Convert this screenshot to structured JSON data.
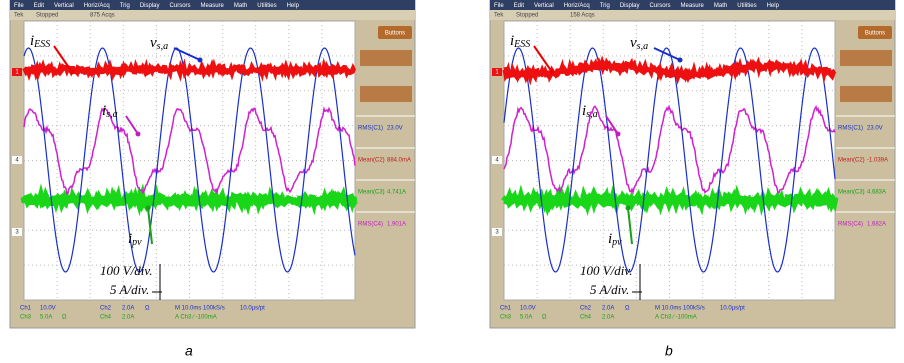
{
  "panels": [
    {
      "label": "a",
      "menu": [
        "File",
        "Edit",
        "Vertical",
        "Horiz/Acq",
        "Trig",
        "Display",
        "Cursors",
        "Measure",
        "Math",
        "Utilities",
        "Help"
      ],
      "status": [
        "Tek",
        "Stopped",
        "875 Acqs"
      ],
      "button": "Buttons",
      "channel_markers": [
        "1",
        "4",
        "3"
      ],
      "measurements": [
        {
          "name": "RMS(C1)",
          "value": "23.0V"
        },
        {
          "name": "Mean(C2)",
          "value": "884.0mA"
        },
        {
          "name": "Mean(C3)",
          "value": "4.741A"
        },
        {
          "name": "RMS(C4)",
          "value": "1.901A"
        }
      ],
      "annotations": [
        {
          "base": "i",
          "sub": "ESS"
        },
        {
          "base": "v",
          "sub": "s,a"
        },
        {
          "base": "i",
          "sub": "s,a"
        },
        {
          "base": "i",
          "sub": "pv"
        }
      ],
      "scales": [
        "100 V/div.",
        "5 A/div."
      ],
      "readout": [
        [
          "Ch1",
          "10.0V",
          "Ch2",
          "2.0A",
          "Ω",
          "M 10.0ms 100kS/s",
          "10.0µs/pt"
        ],
        [
          "Ch3",
          "5.0A",
          "Ω",
          "Ch4",
          "2.0A",
          "A Ch3 ∕ -100mA"
        ]
      ]
    },
    {
      "label": "b",
      "menu": [
        "File",
        "Edit",
        "Vertical",
        "Horiz/Acq",
        "Trig",
        "Display",
        "Cursors",
        "Measure",
        "Math",
        "Utilities",
        "Help"
      ],
      "status": [
        "Tek",
        "Stopped",
        "158 Acqs"
      ],
      "button": "Buttons",
      "channel_markers": [
        "1",
        "4",
        "3"
      ],
      "measurements": [
        {
          "name": "RMS(C1)",
          "value": "23.0V"
        },
        {
          "name": "Mean(C2)",
          "value": "-1.039A"
        },
        {
          "name": "Mean(C3)",
          "value": "4.683A"
        },
        {
          "name": "RMS(C4)",
          "value": "1.682A"
        }
      ],
      "annotations": [
        {
          "base": "i",
          "sub": "ESS"
        },
        {
          "base": "v",
          "sub": "s,a"
        },
        {
          "base": "i",
          "sub": "s,a"
        },
        {
          "base": "i",
          "sub": "pv"
        }
      ],
      "scales": [
        "100 V/div.",
        "5 A/div."
      ],
      "readout": [
        [
          "Ch1",
          "10.0V",
          "Ch2",
          "2.0A",
          "Ω",
          "M 10.0ms 100kS/s",
          "10.0µs/pt"
        ],
        [
          "Ch3",
          "5.0A",
          "Ω",
          "Ch4",
          "2.0A",
          "A Ch3 ∕ -100mA"
        ]
      ]
    }
  ]
}
